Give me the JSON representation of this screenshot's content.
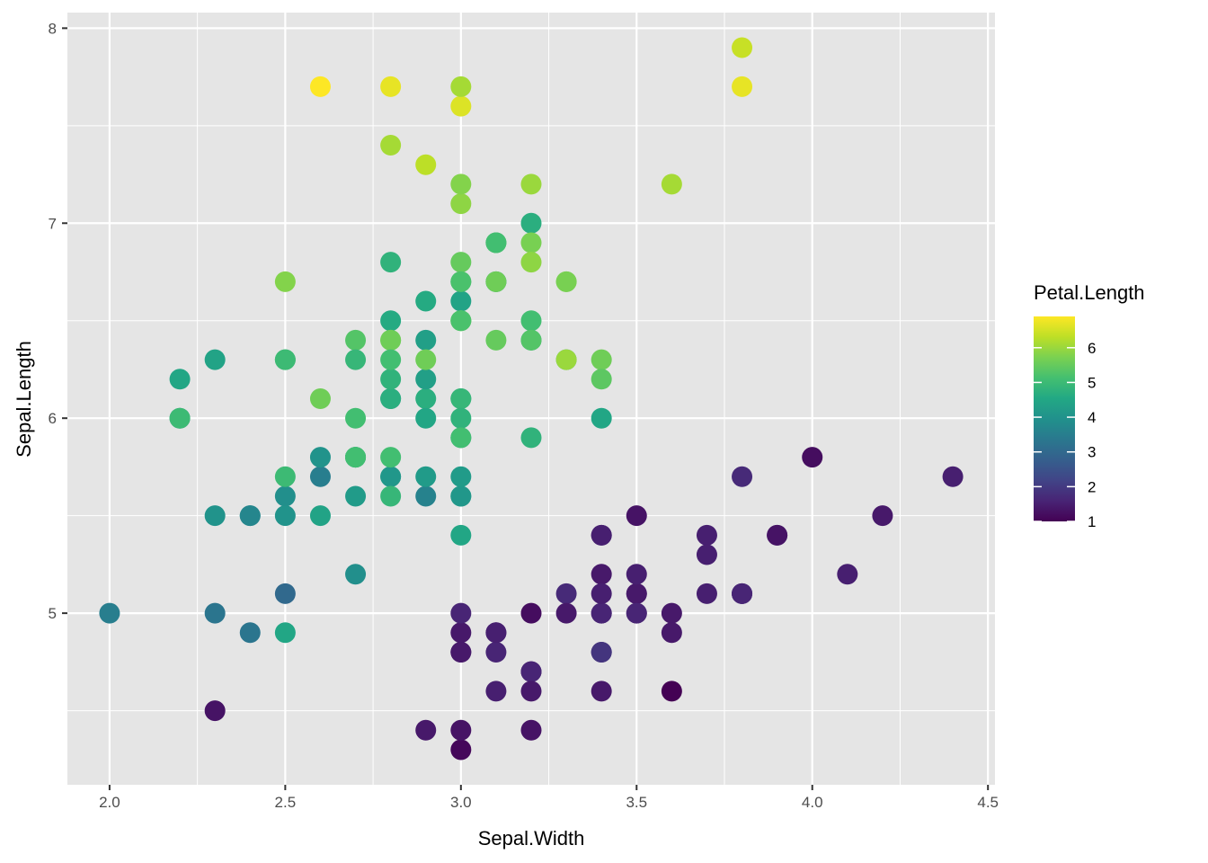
{
  "chart_data": {
    "type": "scatter",
    "title": "",
    "xlabel": "Sepal.Width",
    "ylabel": "Sepal.Length",
    "xlim": [
      1.88,
      4.52
    ],
    "ylim": [
      4.12,
      8.08
    ],
    "xticks": [
      2.0,
      2.5,
      3.0,
      3.5,
      4.0,
      4.5
    ],
    "xtick_labels": [
      "2.0",
      "2.5",
      "3.0",
      "3.5",
      "4.0",
      "4.5"
    ],
    "yticks": [
      5,
      6,
      7,
      8
    ],
    "ytick_labels": [
      "5",
      "6",
      "7",
      "8"
    ],
    "grid": true,
    "background": "#e5e5e5",
    "legend": {
      "title": "Petal.Length",
      "placement": "right",
      "type": "colorbar",
      "palette": "viridis",
      "range": [
        1.0,
        6.9
      ],
      "ticks": [
        1,
        2,
        3,
        4,
        5,
        6
      ],
      "tick_labels": [
        "1",
        "2",
        "3",
        "4",
        "5",
        "6"
      ]
    },
    "points": {
      "x": [
        3.5,
        3.0,
        3.2,
        3.1,
        3.6,
        3.9,
        3.4,
        3.4,
        2.9,
        3.1,
        3.7,
        3.4,
        3.0,
        3.0,
        4.0,
        4.4,
        3.9,
        3.5,
        3.8,
        3.8,
        3.4,
        3.7,
        3.6,
        3.3,
        3.4,
        3.0,
        3.4,
        3.5,
        3.4,
        3.2,
        3.1,
        3.4,
        4.1,
        4.2,
        3.1,
        3.2,
        3.5,
        3.6,
        3.0,
        3.4,
        3.5,
        2.3,
        3.2,
        3.5,
        3.8,
        3.0,
        3.8,
        3.2,
        3.7,
        3.3,
        3.2,
        3.2,
        3.1,
        2.3,
        2.8,
        2.8,
        3.3,
        2.4,
        2.9,
        2.7,
        2.0,
        3.0,
        2.2,
        2.9,
        2.9,
        3.1,
        3.0,
        2.7,
        2.2,
        2.5,
        3.2,
        2.8,
        2.5,
        2.8,
        2.9,
        3.0,
        2.8,
        3.0,
        2.9,
        2.6,
        2.4,
        2.4,
        2.7,
        2.7,
        3.0,
        3.4,
        3.1,
        2.3,
        3.0,
        2.5,
        2.6,
        3.0,
        2.6,
        2.3,
        2.7,
        3.0,
        2.9,
        2.9,
        2.5,
        2.8,
        3.3,
        2.7,
        3.0,
        2.9,
        3.0,
        3.0,
        2.5,
        2.9,
        2.5,
        3.6,
        3.2,
        2.7,
        3.0,
        2.5,
        2.8,
        3.2,
        3.0,
        3.8,
        2.6,
        2.2,
        3.2,
        2.8,
        2.8,
        2.7,
        3.3,
        3.2,
        2.8,
        3.0,
        2.8,
        3.0,
        2.8,
        3.8,
        2.8,
        2.8,
        2.6,
        3.0,
        3.4,
        3.1,
        3.0,
        3.1,
        3.1,
        3.1,
        2.7,
        3.2,
        3.3,
        3.0,
        2.5,
        3.0,
        3.4,
        3.0
      ],
      "y": [
        5.1,
        4.9,
        4.7,
        4.6,
        5.0,
        5.4,
        4.6,
        5.0,
        4.4,
        4.9,
        5.4,
        4.8,
        4.8,
        4.3,
        5.8,
        5.7,
        5.4,
        5.1,
        5.7,
        5.1,
        5.4,
        5.1,
        4.6,
        5.1,
        4.8,
        5.0,
        5.0,
        5.2,
        5.2,
        4.7,
        4.8,
        5.4,
        5.2,
        5.5,
        4.9,
        5.0,
        5.5,
        4.9,
        4.4,
        5.1,
        5.0,
        4.5,
        4.4,
        5.0,
        5.1,
        4.8,
        5.1,
        4.6,
        5.3,
        5.0,
        7.0,
        6.4,
        6.9,
        5.5,
        6.5,
        5.7,
        6.3,
        4.9,
        6.6,
        5.2,
        5.0,
        5.9,
        6.0,
        6.1,
        5.6,
        6.7,
        5.6,
        5.8,
        6.2,
        5.6,
        5.9,
        6.1,
        6.3,
        6.1,
        6.4,
        6.6,
        6.8,
        6.7,
        6.0,
        5.7,
        5.5,
        5.5,
        5.8,
        6.0,
        5.4,
        6.0,
        6.7,
        6.3,
        5.6,
        5.5,
        5.5,
        6.1,
        5.8,
        5.0,
        5.6,
        5.7,
        5.7,
        6.2,
        5.1,
        5.7,
        6.3,
        5.8,
        7.1,
        6.3,
        6.5,
        7.6,
        4.9,
        7.3,
        6.7,
        7.2,
        6.5,
        6.4,
        6.8,
        5.7,
        5.8,
        6.4,
        6.5,
        7.7,
        7.7,
        6.0,
        6.9,
        5.6,
        7.7,
        6.3,
        6.7,
        7.2,
        6.2,
        6.1,
        6.4,
        7.2,
        7.4,
        7.9,
        6.4,
        6.3,
        6.1,
        7.7,
        6.3,
        6.4,
        6.0,
        6.9,
        6.7,
        6.9,
        5.8,
        6.8,
        6.7,
        6.7,
        6.3,
        6.5,
        6.2,
        5.9
      ],
      "color": [
        1.4,
        1.4,
        1.3,
        1.5,
        1.4,
        1.7,
        1.4,
        1.5,
        1.4,
        1.5,
        1.5,
        1.6,
        1.4,
        1.1,
        1.2,
        1.5,
        1.3,
        1.4,
        1.7,
        1.5,
        1.7,
        1.5,
        1.0,
        1.7,
        1.9,
        1.6,
        1.6,
        1.5,
        1.4,
        1.6,
        1.6,
        1.5,
        1.5,
        1.4,
        1.5,
        1.2,
        1.3,
        1.4,
        1.3,
        1.5,
        1.3,
        1.3,
        1.3,
        1.6,
        1.9,
        1.4,
        1.6,
        1.4,
        1.5,
        1.4,
        4.7,
        4.5,
        4.9,
        4.0,
        4.6,
        4.5,
        4.7,
        3.3,
        4.6,
        3.9,
        3.5,
        4.2,
        4.0,
        4.7,
        3.6,
        4.4,
        4.5,
        4.1,
        4.5,
        3.9,
        4.8,
        4.0,
        4.9,
        4.7,
        4.3,
        4.4,
        4.8,
        5.0,
        4.5,
        3.5,
        3.8,
        3.7,
        3.9,
        5.1,
        4.5,
        4.5,
        4.7,
        4.4,
        4.1,
        4.0,
        4.4,
        4.6,
        4.0,
        3.3,
        4.2,
        4.2,
        4.2,
        4.3,
        3.0,
        4.1,
        6.0,
        5.1,
        5.9,
        5.6,
        5.8,
        6.6,
        4.5,
        6.3,
        5.8,
        6.1,
        5.1,
        5.3,
        5.5,
        5.0,
        5.1,
        5.3,
        5.5,
        6.7,
        6.9,
        5.0,
        5.7,
        4.9,
        6.7,
        4.9,
        5.7,
        6.0,
        4.8,
        4.9,
        5.6,
        5.8,
        6.1,
        6.4,
        5.6,
        5.1,
        5.6,
        6.1,
        5.6,
        5.5,
        4.8,
        5.4,
        5.6,
        5.1,
        5.1,
        5.9,
        5.7,
        5.2,
        5.0,
        5.2,
        5.4,
        5.1
      ]
    }
  }
}
